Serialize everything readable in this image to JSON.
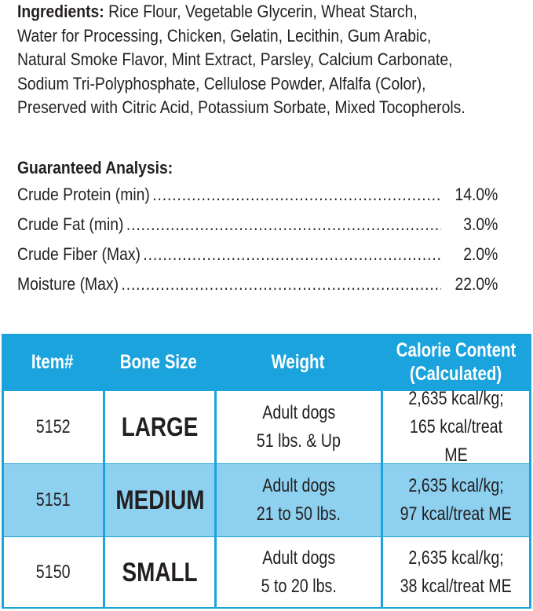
{
  "ingredients": {
    "label": "Ingredients:",
    "lines": [
      " Rice Flour, Vegetable Glycerin, Wheat Starch,",
      "Water for Processing, Chicken, Gelatin, Lecithin, Gum Arabic,",
      "Natural Smoke Flavor, Mint Extract, Parsley, Calcium Carbonate,",
      "Sodium Tri-Polyphosphate, Cellulose Powder, Alfalfa (Color),",
      "Preserved with Citric Acid, Potassium Sorbate, Mixed Tocopherols."
    ]
  },
  "analysis": {
    "title": "Guaranteed Analysis:",
    "items": [
      {
        "label": "Crude Protein (min)",
        "value": "14.0%"
      },
      {
        "label": "Crude Fat (min)",
        "value": "3.0%"
      },
      {
        "label": "Crude Fiber (Max)",
        "value": "2.0%"
      },
      {
        "label": "Moisture (Max)",
        "value": "22.0%"
      }
    ]
  },
  "table": {
    "colors": {
      "header": "#1aa3dc",
      "highlight_row": "#8dd0f0"
    },
    "headers": [
      "Item#",
      "Bone Size",
      "Weight",
      "Calorie Content",
      "(Calculated)"
    ],
    "rows": [
      {
        "item": "5152",
        "size": "LARGE",
        "weight1": "Adult dogs",
        "weight2": "51 lbs. & Up",
        "cal1": "2,635 kcal/kg;",
        "cal2": "165 kcal/treat ME"
      },
      {
        "item": "5151",
        "size": "MEDIUM",
        "weight1": "Adult dogs",
        "weight2": "21 to 50 lbs.",
        "cal1": "2,635 kcal/kg;",
        "cal2": "97 kcal/treat ME"
      },
      {
        "item": "5150",
        "size": "SMALL",
        "weight1": "Adult dogs",
        "weight2": "5 to 20 lbs.",
        "cal1": "2,635 kcal/kg;",
        "cal2": "38 kcal/treat ME"
      }
    ]
  }
}
